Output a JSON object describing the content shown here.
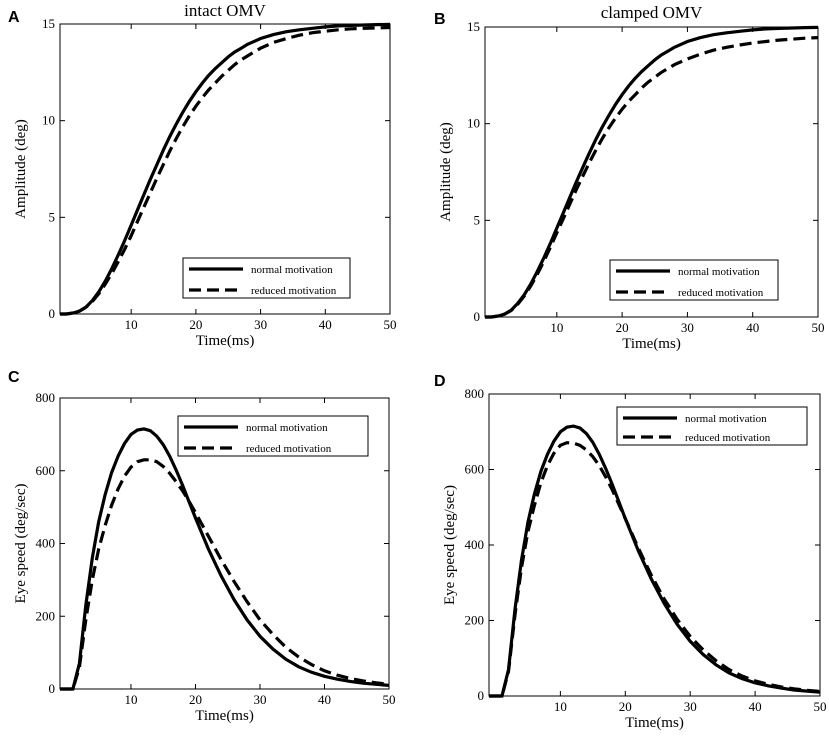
{
  "chart_data": [
    {
      "panel": "A",
      "type": "line",
      "title": "intact OMV",
      "xlabel": "Time(ms)",
      "ylabel": "Amplitude (deg)",
      "xlim": [
        -1,
        50
      ],
      "ylim": [
        0,
        15
      ],
      "xticks": [
        10,
        20,
        30,
        40,
        50
      ],
      "yticks": [
        0,
        5,
        10,
        15
      ],
      "legend_position": "lower-right",
      "series": [
        {
          "name": "normal motivation",
          "style": "solid",
          "x": [
            -1,
            0,
            1,
            2,
            3,
            4,
            5,
            6,
            7,
            8,
            9,
            10,
            11,
            12,
            13,
            14,
            15,
            16,
            17,
            18,
            19,
            20,
            21,
            22,
            23,
            24,
            25,
            26,
            27,
            28,
            29,
            30,
            32,
            34,
            36,
            38,
            40,
            42,
            44,
            46,
            48,
            50
          ],
          "y": [
            0,
            0,
            0.05,
            0.15,
            0.35,
            0.7,
            1.15,
            1.7,
            2.35,
            3.05,
            3.8,
            4.6,
            5.4,
            6.2,
            7.0,
            7.75,
            8.5,
            9.2,
            9.85,
            10.45,
            11.0,
            11.5,
            11.95,
            12.35,
            12.7,
            13.0,
            13.3,
            13.55,
            13.75,
            13.95,
            14.1,
            14.25,
            14.45,
            14.6,
            14.7,
            14.78,
            14.85,
            14.9,
            14.93,
            14.95,
            14.97,
            14.98
          ]
        },
        {
          "name": "reduced motivation",
          "style": "dashed",
          "x": [
            -1,
            0,
            1,
            2,
            3,
            4,
            5,
            6,
            7,
            8,
            9,
            10,
            11,
            12,
            13,
            14,
            15,
            16,
            17,
            18,
            19,
            20,
            21,
            22,
            23,
            24,
            25,
            26,
            27,
            28,
            29,
            30,
            32,
            34,
            36,
            38,
            40,
            42,
            44,
            46,
            48,
            50
          ],
          "y": [
            0,
            0,
            0.05,
            0.15,
            0.35,
            0.65,
            1.05,
            1.55,
            2.1,
            2.7,
            3.35,
            4.05,
            4.8,
            5.55,
            6.3,
            7.05,
            7.75,
            8.45,
            9.1,
            9.7,
            10.25,
            10.75,
            11.2,
            11.6,
            11.95,
            12.3,
            12.6,
            12.9,
            13.15,
            13.35,
            13.55,
            13.75,
            14.05,
            14.25,
            14.42,
            14.55,
            14.63,
            14.7,
            14.75,
            14.78,
            14.8,
            14.82
          ]
        }
      ],
      "legend": [
        "normal motivation",
        "reduced motivation"
      ]
    },
    {
      "panel": "B",
      "type": "line",
      "title": "clamped OMV",
      "xlabel": "Time(ms)",
      "ylabel": "Amplitude (deg)",
      "xlim": [
        -1,
        50
      ],
      "ylim": [
        0,
        15
      ],
      "xticks": [
        10,
        20,
        30,
        40,
        50
      ],
      "yticks": [
        0,
        5,
        10,
        15
      ],
      "legend_position": "lower-right",
      "series": [
        {
          "name": "normal motivation",
          "style": "solid",
          "x": [
            -1,
            0,
            1,
            2,
            3,
            4,
            5,
            6,
            7,
            8,
            9,
            10,
            11,
            12,
            13,
            14,
            15,
            16,
            17,
            18,
            19,
            20,
            21,
            22,
            23,
            24,
            25,
            26,
            27,
            28,
            29,
            30,
            32,
            34,
            36,
            38,
            40,
            42,
            44,
            46,
            48,
            50
          ],
          "y": [
            0,
            0,
            0.05,
            0.15,
            0.35,
            0.7,
            1.15,
            1.7,
            2.35,
            3.05,
            3.8,
            4.6,
            5.4,
            6.2,
            7.0,
            7.75,
            8.5,
            9.2,
            9.85,
            10.45,
            11.0,
            11.5,
            11.95,
            12.35,
            12.7,
            13.0,
            13.3,
            13.55,
            13.75,
            13.95,
            14.1,
            14.25,
            14.45,
            14.6,
            14.7,
            14.78,
            14.85,
            14.9,
            14.93,
            14.95,
            14.97,
            14.98
          ]
        },
        {
          "name": "reduced motivation",
          "style": "dashed",
          "x": [
            -1,
            0,
            1,
            2,
            3,
            4,
            5,
            6,
            7,
            8,
            9,
            10,
            11,
            12,
            13,
            14,
            15,
            16,
            17,
            18,
            19,
            20,
            21,
            22,
            23,
            24,
            25,
            26,
            27,
            28,
            29,
            30,
            32,
            34,
            36,
            38,
            40,
            42,
            44,
            46,
            48,
            50
          ],
          "y": [
            0,
            0,
            0.05,
            0.15,
            0.33,
            0.65,
            1.08,
            1.6,
            2.2,
            2.88,
            3.6,
            4.35,
            5.1,
            5.85,
            6.6,
            7.3,
            8.0,
            8.65,
            9.25,
            9.8,
            10.3,
            10.75,
            11.15,
            11.5,
            11.85,
            12.15,
            12.4,
            12.65,
            12.85,
            13.05,
            13.2,
            13.35,
            13.6,
            13.8,
            13.95,
            14.07,
            14.17,
            14.25,
            14.32,
            14.37,
            14.42,
            14.45
          ]
        }
      ],
      "legend": [
        "normal motivation",
        "reduced motivation"
      ]
    },
    {
      "panel": "C",
      "type": "line",
      "title": "",
      "xlabel": "Time(ms)",
      "ylabel": "Eye speed (deg/sec)",
      "xlim": [
        -1,
        50
      ],
      "ylim": [
        0,
        800
      ],
      "xticks": [
        10,
        20,
        30,
        40,
        50
      ],
      "yticks": [
        0,
        200,
        400,
        600,
        800
      ],
      "legend_position": "top-right",
      "series": [
        {
          "name": "normal motivation",
          "style": "solid",
          "x": [
            -1,
            0,
            1,
            2,
            3,
            4,
            5,
            6,
            7,
            8,
            9,
            10,
            11,
            12,
            13,
            14,
            15,
            16,
            17,
            18,
            19,
            20,
            22,
            24,
            26,
            28,
            30,
            32,
            34,
            36,
            38,
            40,
            42,
            44,
            46,
            48,
            50
          ],
          "y": [
            0,
            0,
            0,
            70,
            230,
            360,
            460,
            535,
            595,
            640,
            675,
            700,
            712,
            715,
            710,
            695,
            672,
            640,
            602,
            560,
            515,
            470,
            385,
            310,
            245,
            190,
            145,
            110,
            82,
            61,
            46,
            35,
            27,
            21,
            16,
            13,
            10
          ]
        },
        {
          "name": "reduced motivation",
          "style": "dashed",
          "x": [
            -1,
            0,
            1,
            2,
            3,
            4,
            5,
            6,
            7,
            8,
            9,
            10,
            11,
            12,
            13,
            14,
            15,
            16,
            17,
            18,
            19,
            20,
            22,
            24,
            26,
            28,
            30,
            32,
            34,
            36,
            38,
            40,
            42,
            44,
            46,
            48,
            50
          ],
          "y": [
            0,
            0,
            0,
            60,
            190,
            300,
            385,
            450,
            505,
            550,
            585,
            610,
            625,
            630,
            630,
            625,
            612,
            593,
            570,
            545,
            516,
            485,
            420,
            355,
            295,
            240,
            190,
            150,
            115,
            88,
            67,
            50,
            38,
            29,
            22,
            17,
            13
          ]
        }
      ],
      "legend": [
        "normal motivation",
        "reduced motivation"
      ]
    },
    {
      "panel": "D",
      "type": "line",
      "title": "",
      "xlabel": "Time(ms)",
      "ylabel": "Eye speed (deg/sec)",
      "xlim": [
        -1,
        50
      ],
      "ylim": [
        0,
        800
      ],
      "xticks": [
        10,
        20,
        30,
        40,
        50
      ],
      "yticks": [
        0,
        200,
        400,
        600,
        800
      ],
      "legend_position": "top-right",
      "series": [
        {
          "name": "normal motivation",
          "style": "solid",
          "x": [
            -1,
            0,
            1,
            2,
            3,
            4,
            5,
            6,
            7,
            8,
            9,
            10,
            11,
            12,
            13,
            14,
            15,
            16,
            17,
            18,
            19,
            20,
            22,
            24,
            26,
            28,
            30,
            32,
            34,
            36,
            38,
            40,
            42,
            44,
            46,
            48,
            50
          ],
          "y": [
            0,
            0,
            0,
            70,
            230,
            360,
            460,
            535,
            595,
            640,
            675,
            700,
            712,
            715,
            710,
            695,
            672,
            640,
            602,
            560,
            515,
            470,
            385,
            310,
            245,
            190,
            145,
            110,
            82,
            61,
            46,
            35,
            27,
            21,
            16,
            13,
            10
          ]
        },
        {
          "name": "reduced motivation",
          "style": "dashed",
          "x": [
            -1,
            0,
            1,
            2,
            3,
            4,
            5,
            6,
            7,
            8,
            9,
            10,
            11,
            12,
            13,
            14,
            15,
            16,
            17,
            18,
            19,
            20,
            22,
            24,
            26,
            28,
            30,
            32,
            34,
            36,
            38,
            40,
            42,
            44,
            46,
            48,
            50
          ],
          "y": [
            0,
            0,
            0,
            65,
            215,
            340,
            435,
            505,
            565,
            610,
            643,
            664,
            671,
            670,
            664,
            652,
            634,
            610,
            580,
            546,
            508,
            470,
            392,
            320,
            257,
            203,
            158,
            122,
            93,
            70,
            53,
            40,
            31,
            24,
            19,
            15,
            12
          ]
        }
      ],
      "legend": [
        "normal motivation",
        "reduced motivation"
      ]
    }
  ]
}
